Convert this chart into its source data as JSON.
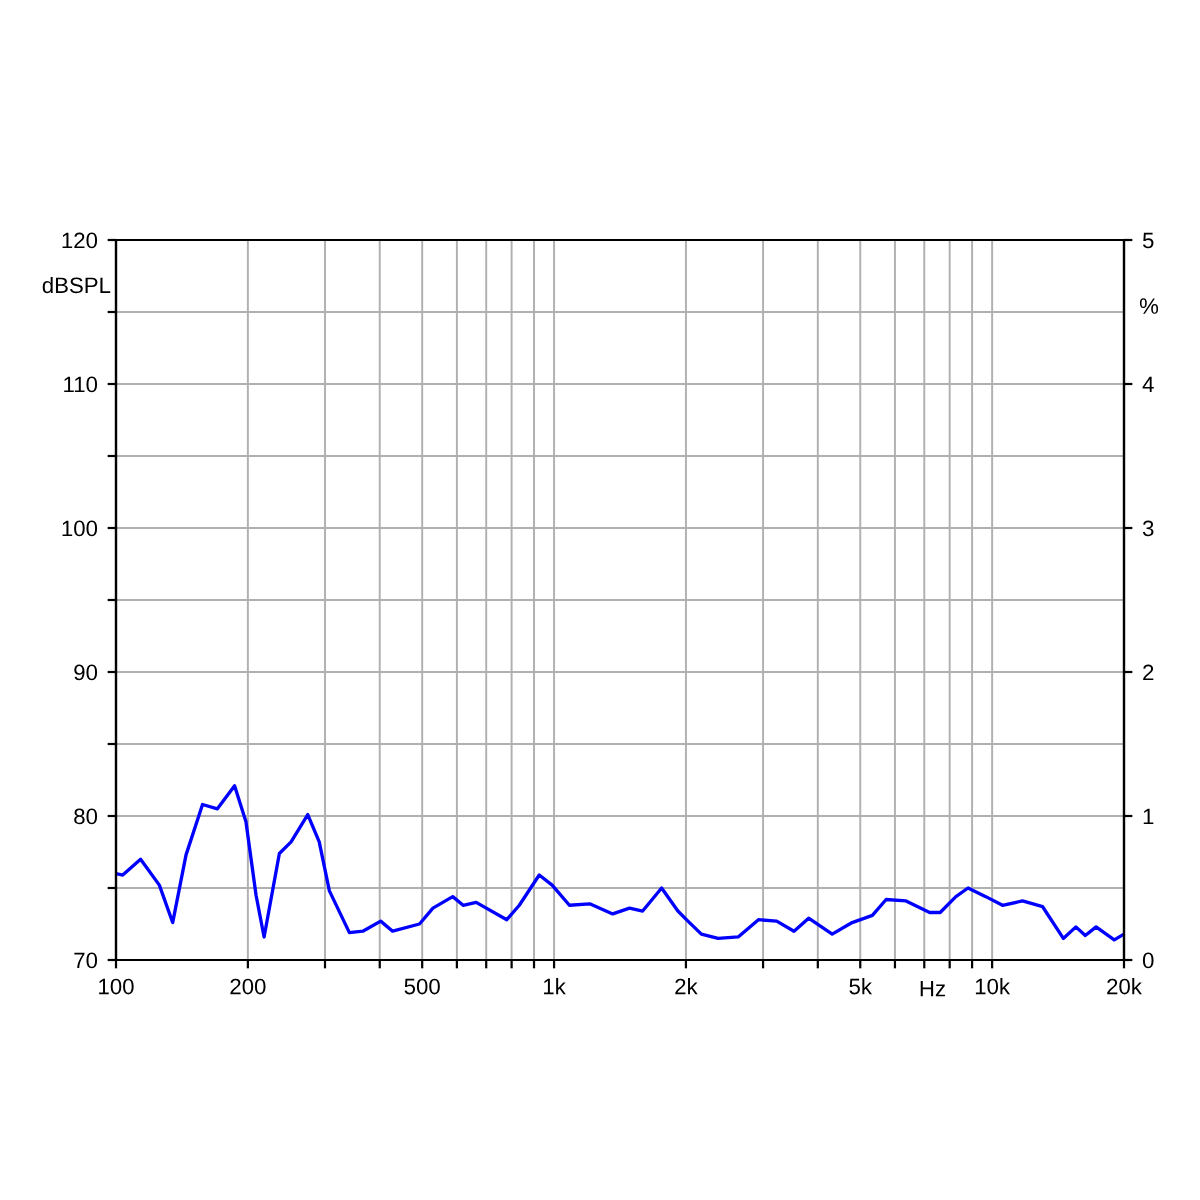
{
  "chart_data": {
    "type": "line",
    "ylabel": "dBSPL",
    "y2label": "%",
    "xlabel": "Hz",
    "log": "x",
    "xlim": [
      100,
      20000
    ],
    "ylim": [
      70,
      120
    ],
    "y2lim": [
      0,
      5
    ],
    "y2ticks": [
      0,
      1,
      2,
      3,
      4,
      5
    ],
    "xticks": [
      100,
      {
        "value": 200,
        "label": "200"
      },
      {
        "value": 300,
        "label": null
      },
      {
        "value": 400,
        "label": null
      },
      {
        "value": 500,
        "label": "500"
      },
      {
        "value": 600,
        "label": null
      },
      {
        "value": 700,
        "label": null
      },
      {
        "value": 800,
        "label": null
      },
      {
        "value": 900,
        "label": null
      },
      {
        "value": 1000,
        "label": "1k"
      },
      {
        "value": 2000,
        "label": "2k"
      },
      {
        "value": 3000,
        "label": null
      },
      {
        "value": 4000,
        "label": null
      },
      {
        "value": 5000,
        "label": "5k"
      },
      {
        "value": 6000,
        "label": null
      },
      {
        "value": 7000,
        "label": null
      },
      {
        "value": 8000,
        "label": null
      },
      {
        "value": 9000,
        "label": null
      },
      {
        "value": 10000,
        "label": "10k"
      },
      {
        "value": 20000,
        "label": "20k"
      }
    ],
    "yticks": [
      70,
      {
        "value": 75,
        "label": null
      },
      80,
      {
        "value": 85,
        "label": null
      },
      90,
      {
        "value": 95,
        "label": null
      },
      100,
      {
        "value": 105,
        "label": null
      },
      110,
      {
        "value": 115,
        "label": null
      },
      120
    ],
    "grid": true,
    "marker": "none",
    "line_style": "solid",
    "series": [
      {
        "color": "#0000ff",
        "x": [
          100,
          103.6,
          113.8,
          125.6,
          134.7,
          144.5,
          157.6,
          170.4,
          186.5,
          198,
          208.8,
          217.8,
          236,
          251,
          274,
          291,
          307,
          341,
          366,
          402,
          428,
          493,
          529,
          587,
          620,
          664,
          780,
          833,
          925,
          990,
          1084,
          1206,
          1361,
          1487,
          1593,
          1760,
          1917,
          2021,
          2169,
          2368,
          2632,
          2928,
          3222,
          3530,
          3812,
          4314,
          4791,
          5329,
          5728,
          6360,
          7200,
          7610,
          8266,
          8810,
          9672,
          10560,
          11730,
          13040,
          14540,
          15530,
          16320,
          17270,
          19000,
          20000
        ],
        "values": [
          76.0,
          75.9,
          77.0,
          75.2,
          72.6,
          77.3,
          80.8,
          80.5,
          82.1,
          79.6,
          74.5,
          71.6,
          77.4,
          78.2,
          80.1,
          78.2,
          74.8,
          71.9,
          72.0,
          72.7,
          72.0,
          72.5,
          73.6,
          74.4,
          73.8,
          74.0,
          72.8,
          73.8,
          75.9,
          75.2,
          73.8,
          73.9,
          73.2,
          73.6,
          73.4,
          75.0,
          73.4,
          72.7,
          71.8,
          71.5,
          71.6,
          72.8,
          72.7,
          72.0,
          72.9,
          71.8,
          72.6,
          73.1,
          74.2,
          74.1,
          73.3,
          73.3,
          74.4,
          75.0,
          74.4,
          73.8,
          74.1,
          73.7,
          71.5,
          72.3,
          71.7,
          72.3,
          71.4,
          71.8
        ]
      }
    ]
  }
}
